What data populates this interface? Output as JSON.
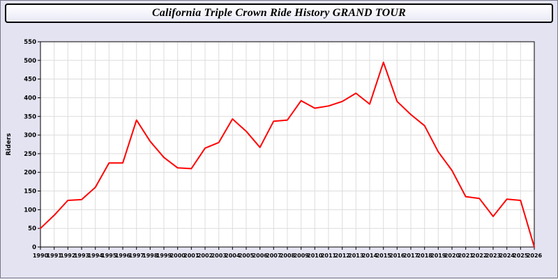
{
  "chart_data": {
    "type": "line",
    "title": "California Triple Crown Ride History GRAND TOUR",
    "xlabel": "",
    "ylabel": "Riders",
    "ylim": [
      0,
      550
    ],
    "ytick_step": 50,
    "grid": true,
    "legend": "none",
    "line_color": "#ff0000",
    "plot_background": "#ffffff",
    "grid_color": "#dcdcdc",
    "x": [
      1990,
      1991,
      1992,
      1993,
      1994,
      1995,
      1996,
      1997,
      1998,
      1999,
      2000,
      2001,
      2002,
      2003,
      2004,
      2005,
      2006,
      2007,
      2008,
      2009,
      2010,
      2011,
      2012,
      2013,
      2014,
      2015,
      2016,
      2017,
      2018,
      2019,
      2020,
      2021,
      2022,
      2023,
      2024,
      2025,
      2026
    ],
    "values": [
      50,
      85,
      125,
      127,
      160,
      225,
      225,
      340,
      283,
      240,
      212,
      210,
      265,
      280,
      343,
      310,
      267,
      337,
      340,
      392,
      372,
      378,
      390,
      412,
      383,
      495,
      390,
      355,
      325,
      255,
      205,
      135,
      130,
      82,
      128,
      125,
      0
    ]
  }
}
